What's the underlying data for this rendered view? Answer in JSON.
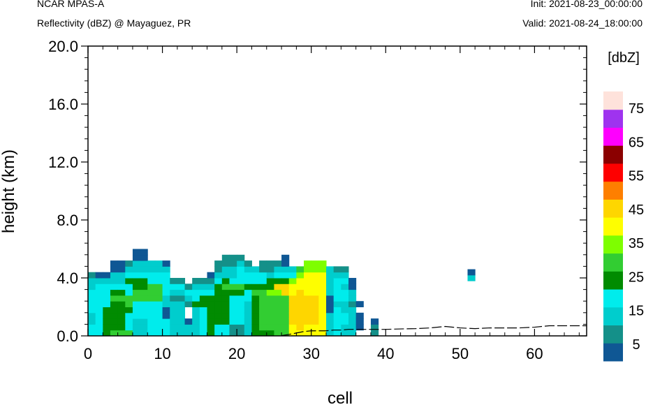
{
  "header": {
    "left_line1": "NCAR MPAS-A",
    "left_line2": "Reflectivity (dBZ) @ Mayaguez, PR",
    "right_line1": "Init: 2021-08-23_00:00:00",
    "right_line2": "Valid: 2021-08-24_18:00:00"
  },
  "chart_data": {
    "type": "heatmap",
    "xlabel": "cell",
    "ylabel": "height (km)",
    "xlim": [
      0,
      67
    ],
    "ylim": [
      0,
      20
    ],
    "x_ticks": [
      0,
      10,
      20,
      30,
      40,
      50,
      60
    ],
    "x_tick_labels": [
      "0",
      "10",
      "20",
      "30",
      "40",
      "50",
      "60"
    ],
    "y_ticks": [
      0,
      4,
      8,
      12,
      16,
      20
    ],
    "y_tick_labels": [
      "0.0",
      "4.0",
      "8.0",
      "12.0",
      "16.0",
      "20.0"
    ],
    "grid": false,
    "colorbar": {
      "title": "[dbZ]",
      "levels": [
        0,
        5,
        10,
        15,
        20,
        25,
        30,
        35,
        40,
        45,
        50,
        55,
        60,
        65,
        70,
        75,
        80
      ],
      "colors": [
        "#0f5794",
        "#149089",
        "#00cdcd",
        "#00ecec",
        "#018b01",
        "#32cd32",
        "#7efe00",
        "#fefe00",
        "#fed600",
        "#fe7f00",
        "#fe0000",
        "#8b0000",
        "#fe00fe",
        "#9f33ef",
        "#fee2db"
      ],
      "labels": [
        "5",
        "15",
        "25",
        "35",
        "45",
        "55",
        "65",
        "75"
      ],
      "label_levels": [
        5,
        15,
        25,
        35,
        45,
        55,
        65,
        75
      ]
    },
    "terrain": [
      [
        26,
        0.02
      ],
      [
        27,
        0.1
      ],
      [
        28,
        0.2
      ],
      [
        29,
        0.3
      ],
      [
        30,
        0.35
      ],
      [
        31,
        0.35
      ],
      [
        32,
        0.35
      ],
      [
        33,
        0.4
      ],
      [
        34,
        0.4
      ],
      [
        35,
        0.45
      ],
      [
        36,
        0.45
      ],
      [
        37,
        0.45
      ],
      [
        38,
        0.45
      ],
      [
        39,
        0.45
      ],
      [
        40,
        0.45
      ],
      [
        42,
        0.48
      ],
      [
        44,
        0.5
      ],
      [
        46,
        0.55
      ],
      [
        48,
        0.65
      ],
      [
        50,
        0.55
      ],
      [
        52,
        0.5
      ],
      [
        54,
        0.55
      ],
      [
        56,
        0.55
      ],
      [
        58,
        0.55
      ],
      [
        60,
        0.6
      ],
      [
        62,
        0.7
      ],
      [
        64,
        0.7
      ],
      [
        66,
        0.7
      ],
      [
        67,
        0.7
      ]
    ],
    "columns": [
      {
        "x": 0.5,
        "z": [
          17,
          17,
          12,
          12,
          17,
          17,
          17,
          17,
          12,
          12,
          7
        ]
      },
      {
        "x": 1.5,
        "z": [
          17,
          17,
          17,
          17,
          17,
          17,
          17,
          17,
          17,
          12,
          2
        ]
      },
      {
        "x": 2.5,
        "z": [
          22,
          22,
          22,
          22,
          22,
          17,
          17,
          17,
          17,
          12,
          2
        ]
      },
      {
        "x": 3.5,
        "z": [
          27,
          22,
          22,
          22,
          22,
          22,
          27,
          22,
          17,
          12,
          12,
          2,
          2
        ]
      },
      {
        "x": 4.5,
        "z": [
          27,
          22,
          22,
          22,
          22,
          22,
          27,
          22,
          17,
          12,
          12,
          2,
          2
        ]
      },
      {
        "x": 5.5,
        "z": [
          27,
          17,
          17,
          17,
          22,
          27,
          27,
          17,
          17,
          22,
          17,
          12,
          7
        ]
      },
      {
        "x": 6.5,
        "z": [
          12,
          12,
          12,
          17,
          17,
          17,
          27,
          27,
          22,
          22,
          17,
          12,
          12,
          2,
          2
        ]
      },
      {
        "x": 7.5,
        "z": [
          12,
          12,
          12,
          17,
          17,
          17,
          27,
          27,
          22,
          22,
          17,
          12,
          12,
          2,
          2
        ]
      },
      {
        "x": 8.5,
        "z": [
          17,
          17,
          17,
          17,
          17,
          17,
          27,
          27,
          27,
          17,
          17,
          12,
          12
        ]
      },
      {
        "x": 9.5,
        "z": [
          17,
          17,
          17,
          17,
          17,
          17,
          27,
          27,
          27,
          17,
          17,
          12,
          12
        ]
      },
      {
        "x": 10.5,
        "z": [
          17,
          17,
          17,
          2,
          2,
          12,
          12,
          17,
          17,
          17,
          17,
          12,
          2
        ]
      },
      {
        "x": 11.5,
        "z": [
          12,
          12,
          12,
          12,
          12,
          12,
          7,
          12,
          17,
          7
        ]
      },
      {
        "x": 12.5,
        "z": [
          12,
          12,
          12,
          12,
          12,
          12,
          7,
          12,
          17,
          7
        ]
      },
      {
        "x": 13.5,
        "z": [
          12,
          12,
          2,
          -1,
          -1,
          7,
          12,
          17,
          7
        ]
      },
      {
        "x": 14.5,
        "z": [
          12,
          12,
          12,
          12,
          12,
          22,
          17,
          17,
          12,
          7
        ]
      },
      {
        "x": 15.5,
        "z": [
          17,
          17,
          17,
          17,
          17,
          22,
          22,
          17,
          12,
          7
        ]
      },
      {
        "x": 16.5,
        "z": [
          22,
          22,
          22,
          22,
          22,
          22,
          22,
          17,
          12,
          7,
          2
        ]
      },
      {
        "x": 17.5,
        "z": [
          17,
          17,
          22,
          22,
          22,
          22,
          22,
          22,
          22,
          17,
          12,
          7,
          7
        ]
      },
      {
        "x": 18.5,
        "z": [
          17,
          17,
          22,
          22,
          22,
          22,
          22,
          22,
          27,
          22,
          12,
          12,
          7,
          7
        ]
      },
      {
        "x": 19.5,
        "z": [
          7,
          7,
          17,
          17,
          17,
          17,
          17,
          22,
          27,
          17,
          12,
          12,
          7,
          7
        ]
      },
      {
        "x": 20.5,
        "z": [
          7,
          7,
          17,
          17,
          17,
          17,
          17,
          22,
          27,
          17,
          17,
          17,
          12,
          7
        ]
      },
      {
        "x": 21.5,
        "z": [
          12,
          12,
          12,
          12,
          12,
          12,
          17,
          17,
          22,
          17,
          17,
          12,
          7
        ]
      },
      {
        "x": 22.5,
        "z": [
          22,
          22,
          22,
          22,
          22,
          22,
          22,
          27,
          22,
          17,
          17,
          12
        ]
      },
      {
        "x": 23.5,
        "z": [
          22,
          27,
          27,
          27,
          27,
          27,
          27,
          27,
          22,
          17,
          17,
          7,
          7
        ]
      },
      {
        "x": 24.5,
        "z": [
          22,
          27,
          27,
          27,
          27,
          27,
          27,
          32,
          22,
          22,
          12,
          7,
          7
        ]
      },
      {
        "x": 25.5,
        "z": [
          27,
          27,
          27,
          27,
          27,
          27,
          27,
          32,
          42,
          22,
          17,
          12,
          7
        ]
      },
      {
        "x": 26.5,
        "z": [
          27,
          27,
          27,
          27,
          27,
          27,
          27,
          42,
          42,
          22,
          17,
          12,
          2,
          2
        ]
      },
      {
        "x": 27.5,
        "z": [
          37,
          37,
          42,
          42,
          42,
          42,
          42,
          37,
          37,
          32,
          17,
          12
        ]
      },
      {
        "x": 28.5,
        "z": [
          37,
          42,
          42,
          42,
          42,
          42,
          42,
          42,
          37,
          37,
          32,
          27
        ]
      },
      {
        "x": 29.5,
        "z": [
          37,
          37,
          42,
          42,
          42,
          42,
          42,
          37,
          37,
          37,
          37,
          32,
          32
        ]
      },
      {
        "x": 30.5,
        "z": [
          37,
          37,
          42,
          42,
          42,
          42,
          42,
          37,
          37,
          37,
          37,
          32,
          32
        ]
      },
      {
        "x": 31.5,
        "z": [
          37,
          37,
          37,
          37,
          37,
          37,
          37,
          37,
          37,
          37,
          37,
          32,
          32
        ]
      },
      {
        "x": 32.5,
        "z": [
          12,
          12,
          12,
          12,
          2,
          2,
          2,
          12,
          12,
          12,
          12,
          12
        ]
      },
      {
        "x": 33.5,
        "z": [
          17,
          17,
          17,
          17,
          17,
          12,
          17,
          17,
          17,
          17,
          12,
          7
        ]
      },
      {
        "x": 34.5,
        "z": [
          12,
          12,
          17,
          17,
          12,
          12,
          17,
          17,
          12,
          17,
          12,
          7
        ]
      },
      {
        "x": 35.5,
        "z": [
          12,
          12,
          12,
          12,
          12,
          7,
          12,
          12,
          2,
          2
        ]
      },
      {
        "x": 36.5,
        "z": [
          -1,
          2,
          2,
          2,
          -1,
          2
        ]
      },
      {
        "x": 37.5,
        "z": [
          -1,
          -1,
          -1,
          -1
        ]
      },
      {
        "x": 38.5,
        "z": [
          7,
          7,
          2
        ]
      }
    ],
    "isolated_cells": [
      {
        "x": 51.5,
        "z_bottom": 3.8,
        "values": [
          12,
          2
        ]
      }
    ],
    "row_height_km": 0.4
  }
}
